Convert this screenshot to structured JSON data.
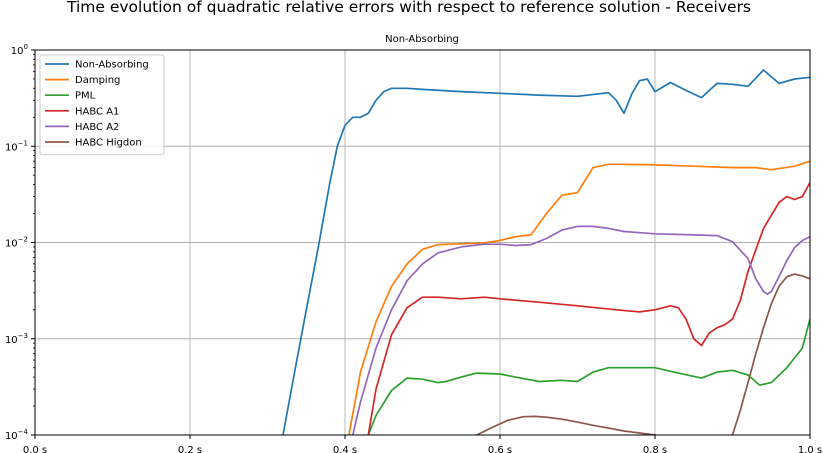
{
  "title": "Time evolution of quadratic relative errors with respect to reference solution - Receivers",
  "chart_data": {
    "type": "line",
    "subtitle": "Non-Absorbing",
    "title": "Time evolution of quadratic relative errors with respect to reference solution - Receivers",
    "xlabel": "",
    "ylabel": "",
    "xlim": [
      0.0,
      1.0
    ],
    "ylim": [
      0.0001,
      1.0
    ],
    "yscale": "log",
    "grid": true,
    "legend_position": "top-left",
    "x_ticks": [
      0.0,
      0.2,
      0.4,
      0.6,
      0.8,
      1.0
    ],
    "x_tick_labels": [
      "0.0 s",
      "0.2 s",
      "0.4 s",
      "0.6 s",
      "0.8 s",
      "1.0 s"
    ],
    "y_ticks": [
      0.0001,
      0.001,
      0.01,
      0.1,
      1.0
    ],
    "y_tick_labels": [
      {
        "base": "10",
        "exp": "−4"
      },
      {
        "base": "10",
        "exp": "−3"
      },
      {
        "base": "10",
        "exp": "−2"
      },
      {
        "base": "10",
        "exp": "−1"
      },
      {
        "base": "10",
        "exp": "0"
      }
    ],
    "series": [
      {
        "name": "Non-Absorbing",
        "color": "#1f77b4",
        "x": [
          0.32,
          0.335,
          0.35,
          0.365,
          0.38,
          0.39,
          0.4,
          0.41,
          0.42,
          0.43,
          0.44,
          0.45,
          0.46,
          0.48,
          0.5,
          0.55,
          0.6,
          0.65,
          0.7,
          0.74,
          0.75,
          0.76,
          0.77,
          0.78,
          0.79,
          0.8,
          0.82,
          0.84,
          0.86,
          0.88,
          0.9,
          0.92,
          0.94,
          0.96,
          0.98,
          1.0
        ],
        "y": [
          0.0001,
          0.00045,
          0.002,
          0.0085,
          0.04,
          0.1,
          0.165,
          0.2,
          0.2,
          0.22,
          0.3,
          0.37,
          0.4,
          0.4,
          0.39,
          0.37,
          0.355,
          0.34,
          0.33,
          0.36,
          0.3,
          0.22,
          0.35,
          0.48,
          0.5,
          0.37,
          0.46,
          0.38,
          0.32,
          0.45,
          0.44,
          0.42,
          0.62,
          0.45,
          0.5,
          0.52
        ]
      },
      {
        "name": "Damping",
        "color": "#ff7f0e",
        "x": [
          0.405,
          0.42,
          0.44,
          0.46,
          0.48,
          0.5,
          0.52,
          0.55,
          0.58,
          0.6,
          0.62,
          0.64,
          0.66,
          0.68,
          0.7,
          0.72,
          0.74,
          0.76,
          0.8,
          0.85,
          0.9,
          0.93,
          0.95,
          0.98,
          1.0
        ],
        "y": [
          0.0001,
          0.00045,
          0.0015,
          0.0035,
          0.006,
          0.0085,
          0.0095,
          0.0097,
          0.0099,
          0.0105,
          0.0115,
          0.012,
          0.02,
          0.031,
          0.033,
          0.06,
          0.065,
          0.065,
          0.064,
          0.062,
          0.06,
          0.06,
          0.057,
          0.062,
          0.07
        ]
      },
      {
        "name": "PML",
        "color": "#2ca02c",
        "x": [
          0.43,
          0.44,
          0.46,
          0.48,
          0.5,
          0.52,
          0.53,
          0.55,
          0.57,
          0.6,
          0.62,
          0.65,
          0.68,
          0.7,
          0.72,
          0.74,
          0.76,
          0.8,
          0.83,
          0.86,
          0.88,
          0.9,
          0.92,
          0.935,
          0.95,
          0.97,
          0.99,
          1.0
        ],
        "y": [
          0.0001,
          0.00016,
          0.00029,
          0.00039,
          0.00038,
          0.00035,
          0.00036,
          0.0004,
          0.00044,
          0.00043,
          0.0004,
          0.00036,
          0.00037,
          0.00036,
          0.00045,
          0.0005,
          0.0005,
          0.0005,
          0.00044,
          0.00039,
          0.00045,
          0.00047,
          0.00042,
          0.00033,
          0.00035,
          0.0005,
          0.0008,
          0.0016
        ]
      },
      {
        "name": "HABC A1",
        "color": "#d62728",
        "x": [
          0.43,
          0.44,
          0.46,
          0.48,
          0.5,
          0.52,
          0.55,
          0.58,
          0.6,
          0.65,
          0.7,
          0.75,
          0.78,
          0.8,
          0.82,
          0.83,
          0.84,
          0.85,
          0.86,
          0.87,
          0.88,
          0.89,
          0.9,
          0.91,
          0.92,
          0.94,
          0.96,
          0.97,
          0.98,
          0.99,
          1.0
        ],
        "y": [
          0.0001,
          0.0003,
          0.0011,
          0.0021,
          0.0027,
          0.0027,
          0.0026,
          0.0027,
          0.0026,
          0.0024,
          0.0022,
          0.002,
          0.0019,
          0.002,
          0.0022,
          0.0021,
          0.0016,
          0.001,
          0.00085,
          0.00115,
          0.0013,
          0.0014,
          0.0016,
          0.0025,
          0.005,
          0.014,
          0.026,
          0.03,
          0.028,
          0.03,
          0.042
        ]
      },
      {
        "name": "HABC A2",
        "color": "#9467bd",
        "x": [
          0.41,
          0.42,
          0.44,
          0.46,
          0.48,
          0.5,
          0.52,
          0.55,
          0.58,
          0.6,
          0.62,
          0.64,
          0.66,
          0.68,
          0.7,
          0.72,
          0.74,
          0.76,
          0.8,
          0.85,
          0.88,
          0.9,
          0.92,
          0.93,
          0.94,
          0.945,
          0.95,
          0.96,
          0.97,
          0.98,
          0.99,
          1.0
        ],
        "y": [
          0.0001,
          0.00022,
          0.0008,
          0.002,
          0.004,
          0.006,
          0.0078,
          0.009,
          0.0096,
          0.0096,
          0.0093,
          0.0095,
          0.011,
          0.0135,
          0.0147,
          0.0147,
          0.014,
          0.013,
          0.0123,
          0.012,
          0.0118,
          0.0102,
          0.0068,
          0.0042,
          0.0031,
          0.0029,
          0.0031,
          0.0044,
          0.0065,
          0.0088,
          0.0105,
          0.0115
        ]
      },
      {
        "name": "HABC Higdon",
        "color": "#8c564b",
        "x": [
          0.57,
          0.59,
          0.61,
          0.63,
          0.645,
          0.66,
          0.68,
          0.7,
          0.72,
          0.74,
          0.76,
          0.78,
          0.8,
          0.83,
          0.86,
          0.88,
          0.89,
          0.9,
          0.91,
          0.92,
          0.93,
          0.94,
          0.95,
          0.96,
          0.97,
          0.98,
          0.99,
          1.0
        ],
        "y": [
          0.0001,
          0.00012,
          0.000142,
          0.000155,
          0.000156,
          0.000153,
          0.000146,
          0.000136,
          0.000126,
          0.000118,
          0.00011,
          0.000105,
          0.0001,
          9e-05,
          8e-05,
          7e-05,
          8e-05,
          0.0001,
          0.00018,
          0.00035,
          0.0007,
          0.0013,
          0.0023,
          0.0035,
          0.0044,
          0.0047,
          0.0045,
          0.0042
        ]
      }
    ]
  }
}
